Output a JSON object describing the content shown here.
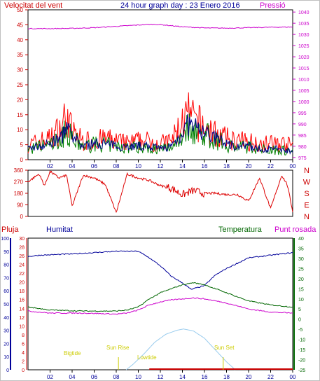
{
  "header": {
    "left_title": "Velocitat del vent",
    "center_title": "24 hour graph day : 23 Enero 2016",
    "right_title": "Pressió"
  },
  "labels": {
    "rain": "Pluja",
    "humidity": "Humitat",
    "temperature": "Temperatura",
    "dewpoint": "Punt rosada",
    "sun_rise": "Sun Rise",
    "sun_set": "Sun Set",
    "bigtide": "Bigtide",
    "lowtide": "Lowtide"
  },
  "colors": {
    "wind": "#ff0000",
    "gust_avg": "#00008b",
    "wind_green": "#008000",
    "pressure": "#cc00cc",
    "direction": "#dd0000",
    "humidity": "#000099",
    "temperature": "#006600",
    "dewpoint": "#cc00cc",
    "solar": "#99ccee",
    "title": "#000099",
    "tide": "#cccc00",
    "axis_left": "#cc0000",
    "axis_right": "#cc00cc",
    "axis_temp": "#006600",
    "axis_hum": "#000099"
  },
  "chart_data": [
    {
      "type": "line",
      "name": "wind-pressure-panel",
      "x_ticks": [
        "02",
        "04",
        "06",
        "08",
        "10",
        "12",
        "14",
        "16",
        "18",
        "20",
        "22",
        "00"
      ],
      "left_axis": {
        "ticks": [
          0,
          5,
          10,
          15,
          20,
          25,
          30,
          35,
          40,
          45,
          50
        ],
        "ylim": [
          0,
          50
        ]
      },
      "right_axis": {
        "ticks": [
          975,
          980,
          985,
          990,
          995,
          1000,
          1005,
          1010,
          1015,
          1020,
          1025,
          1030,
          1035,
          1040
        ],
        "ylim": [
          974,
          1041
        ]
      },
      "wind_profile": {
        "hours": [
          0,
          1,
          2,
          3,
          3.5,
          4,
          5,
          6,
          7,
          8,
          9,
          10,
          11,
          12,
          13,
          14,
          14.5,
          15,
          16,
          17,
          18,
          19,
          20,
          21,
          22,
          23,
          24
        ],
        "gust": [
          6,
          8,
          9,
          14,
          19,
          12,
          8,
          8,
          9,
          8,
          7,
          8,
          8,
          7,
          8,
          16,
          19,
          17,
          14,
          11,
          9,
          8,
          8,
          7,
          7,
          7,
          6
        ],
        "average": [
          4,
          5,
          6,
          8,
          12,
          8,
          5,
          6,
          6,
          5,
          5,
          5,
          5,
          4,
          5,
          10,
          13,
          12,
          10,
          8,
          6,
          5,
          5,
          4,
          4,
          4,
          3
        ]
      },
      "pressure": {
        "hours": [
          0,
          2,
          4,
          6,
          8,
          10,
          11,
          12,
          14,
          16,
          18,
          20,
          22,
          24
        ],
        "values": [
          1032.6,
          1032.6,
          1032.7,
          1033.0,
          1033.6,
          1034.2,
          1034.5,
          1034.4,
          1033.4,
          1032.9,
          1032.8,
          1033.0,
          1033.2,
          1033.3
        ]
      }
    },
    {
      "type": "line",
      "name": "wind-direction-panel",
      "left_axis": {
        "ticks": [
          0,
          90,
          180,
          270,
          360
        ],
        "ylim": [
          0,
          360
        ]
      },
      "right_axis_labels": [
        "N",
        "W",
        "S",
        "E",
        "N"
      ],
      "direction": {
        "hours": [
          0,
          1,
          1.5,
          2,
          2.8,
          3.5,
          4,
          5,
          6,
          7,
          8,
          9,
          10,
          11,
          12,
          13,
          14,
          15,
          16,
          17,
          18,
          19,
          20,
          21,
          22,
          23,
          23.5,
          24
        ],
        "values": [
          270,
          330,
          240,
          350,
          300,
          320,
          80,
          320,
          300,
          250,
          30,
          330,
          300,
          280,
          240,
          220,
          170,
          200,
          180,
          180,
          170,
          170,
          120,
          300,
          60,
          320,
          250,
          40
        ]
      }
    },
    {
      "type": "line",
      "name": "humidity-temperature-panel",
      "x_ticks": [
        "02",
        "04",
        "06",
        "08",
        "10",
        "12",
        "14",
        "16",
        "18",
        "20",
        "22",
        "00"
      ],
      "left_axis": {
        "ticks": [
          0,
          10,
          20,
          30,
          40,
          50,
          60,
          70,
          80,
          90,
          100
        ],
        "ylim": [
          0,
          100
        ]
      },
      "rain_axis": {
        "ticks": [
          0,
          2,
          4,
          6,
          8,
          10,
          12,
          14,
          16,
          18,
          20,
          22,
          24,
          26,
          28,
          30
        ],
        "ylim": [
          0,
          30
        ]
      },
      "temp_axis": {
        "ticks": [
          -25,
          -20,
          -15,
          -10,
          -5,
          0,
          5,
          10,
          15,
          20,
          25,
          30,
          35,
          40
        ],
        "ylim": [
          -25,
          40
        ]
      },
      "humidity": {
        "hours": [
          0,
          1,
          4,
          8,
          10,
          11,
          12,
          13,
          14,
          14.8,
          16,
          17,
          18,
          19,
          20,
          22,
          24
        ],
        "values": [
          86,
          87,
          88,
          90,
          90,
          85,
          79,
          71,
          66,
          61,
          64,
          72,
          77,
          81,
          85,
          87,
          89
        ]
      },
      "temperature": {
        "hours": [
          0,
          2,
          5,
          8,
          9,
          10,
          11,
          12,
          13,
          14,
          15,
          16,
          17,
          18,
          19,
          20,
          22,
          24
        ],
        "values": [
          6,
          4.5,
          4,
          4,
          4.5,
          6,
          10,
          13,
          15,
          17,
          18,
          17,
          15,
          13,
          11,
          9,
          7,
          6
        ]
      },
      "dewpoint": {
        "hours": [
          0,
          2,
          5,
          8,
          9,
          10,
          11,
          12,
          13,
          14,
          15,
          16,
          17,
          18,
          19,
          20,
          22,
          24
        ],
        "values": [
          4,
          3,
          3,
          2.5,
          3,
          4.5,
          7,
          8.5,
          9.5,
          10,
          10.5,
          10,
          9,
          8,
          6.5,
          5,
          3.5,
          3
        ]
      },
      "solar": {
        "hours": [
          8.9,
          9.5,
          10.5,
          11.5,
          12.5,
          13.5,
          14.1,
          15,
          16,
          17,
          18,
          18.8
        ],
        "values_deg": [
          0,
          4,
          12,
          21,
          27,
          30,
          31,
          29.5,
          24,
          15,
          6,
          0
        ]
      },
      "rain_hours": [
        11,
        24
      ],
      "events": {
        "sun_rise_hour": 8.2,
        "sun_set_hour": 17.7,
        "bigtide_hour": 3.2,
        "lowtide_hour": 10.6
      }
    }
  ]
}
